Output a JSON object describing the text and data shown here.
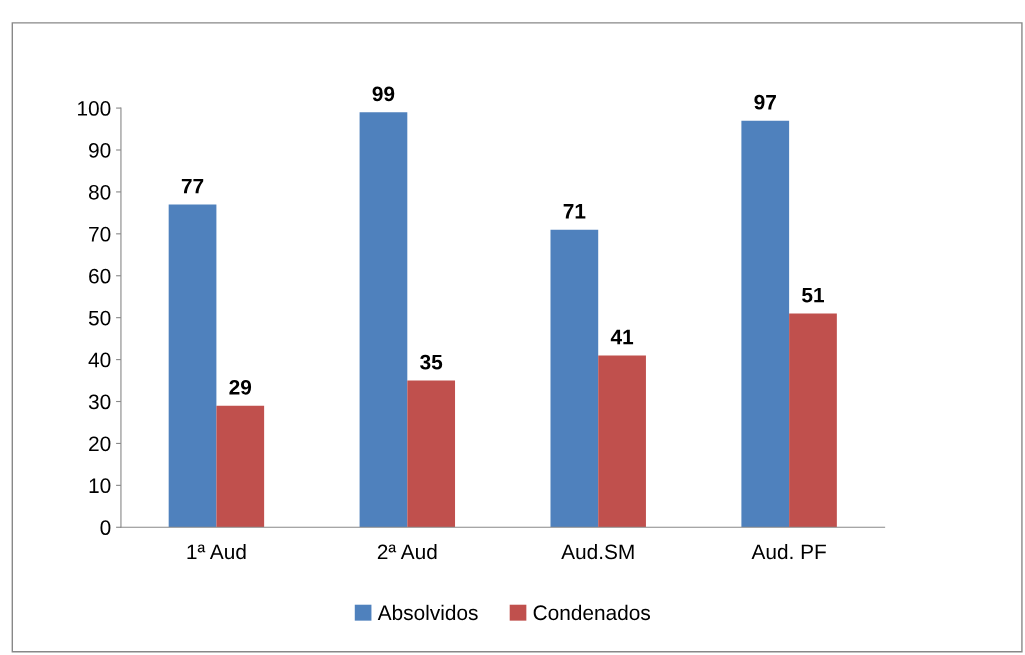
{
  "chart_data": {
    "type": "bar",
    "categories": [
      "1ª Aud",
      "2ª Aud",
      "Aud.SM",
      "Aud. PF"
    ],
    "series": [
      {
        "name": "Absolvidos",
        "color": "#4f81bd",
        "values": [
          77,
          99,
          71,
          97
        ]
      },
      {
        "name": "Condenados",
        "color": "#c0504d",
        "values": [
          29,
          35,
          41,
          51
        ]
      }
    ],
    "ylim": [
      0,
      100
    ],
    "yticks": [
      0,
      10,
      20,
      30,
      40,
      50,
      60,
      70,
      80,
      90,
      100
    ],
    "data_labels": true,
    "grid": false,
    "legend": "bottom"
  }
}
